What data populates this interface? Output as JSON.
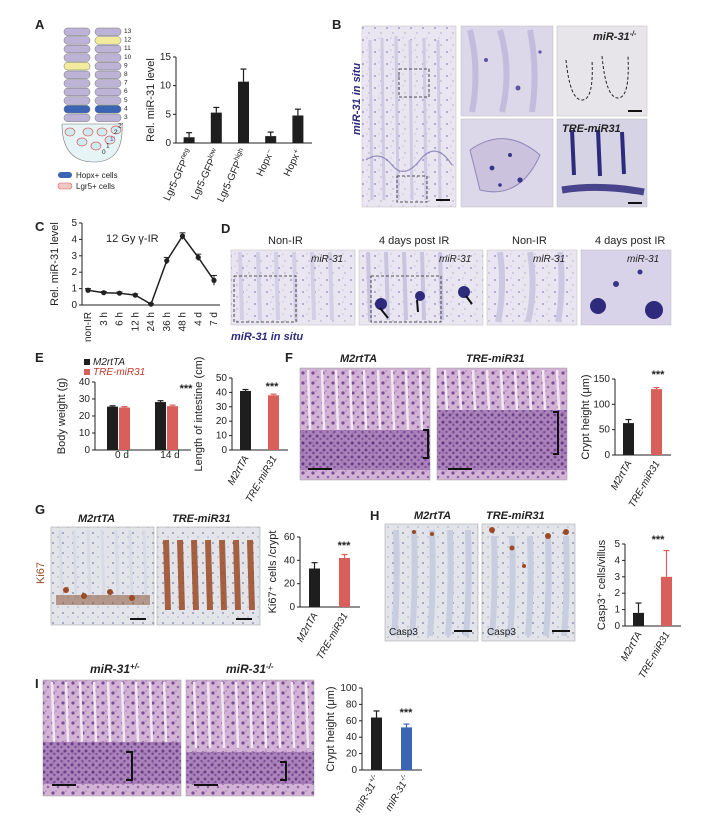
{
  "panel_letters": [
    "A",
    "B",
    "C",
    "D",
    "E",
    "F",
    "G",
    "H",
    "I"
  ],
  "colors": {
    "black_bar": "#1e1e1e",
    "red_bar": "#d9605a",
    "blue_bar": "#3b64b4",
    "he_bg": "#c9a6cf",
    "insitu_bg": "#e7e3ef",
    "ish_stain": "#2e2a7c",
    "ki67": "#9a4a24"
  },
  "panel_a": {
    "crypt_numbers": [
      "13",
      "12",
      "11",
      "10",
      "9",
      "8",
      "7",
      "6",
      "5",
      "4",
      "3",
      "2'",
      "2",
      "1'",
      "1",
      "0"
    ],
    "legend": [
      "Hopx+ cells",
      "Lgr5+ cells"
    ]
  },
  "panel_b": {
    "insitu_label": "miR-31 in situ",
    "knockout_label": "miR-31",
    "knockout_sup": "-/-",
    "transgenic_label": "TRE-miR31"
  },
  "panel_c": {
    "annotation": "12 Gy γ-IR"
  },
  "panel_d": {
    "labels": [
      "Non-IR",
      "4 days post IR",
      "Non-IR",
      "4 days post IR"
    ],
    "probe": "miR-31",
    "insitu_caption": "miR-31 in situ"
  },
  "panel_e": {
    "legend": [
      "M2rtTA",
      "TRE-miR31"
    ],
    "sig": "***",
    "sig2": "***"
  },
  "panel_f": {
    "titles": [
      "M2rtTA",
      "TRE-miR31"
    ],
    "sig": "***"
  },
  "panel_g": {
    "titles": [
      "M2rtTA",
      "TRE-miR31"
    ],
    "side_label": "Ki67",
    "sig": "***"
  },
  "panel_h": {
    "titles": [
      "M2rtTA",
      "TRE-miR31"
    ],
    "stain_label": "Casp3",
    "sig": "***"
  },
  "panel_i": {
    "titles": [
      "miR-31",
      "miR-31"
    ],
    "title_sups": [
      "+/-",
      "-/-"
    ],
    "sig": "***"
  },
  "chart_data": [
    {
      "id": "A",
      "type": "bar",
      "categories": [
        "Lgr5-GFP neg",
        "Lgr5-GFP low",
        "Lgr5-GFP high",
        "Hopx-",
        "Hopx+"
      ],
      "values": [
        1.0,
        5.3,
        10.7,
        1.2,
        4.8
      ],
      "errors": [
        0.8,
        0.9,
        2.2,
        0.7,
        1.1
      ],
      "ylabel": "Rel. miR-31 level",
      "ylim": [
        0,
        15
      ],
      "yticks": [
        0,
        5,
        10,
        15
      ]
    },
    {
      "id": "C",
      "type": "line",
      "categories": [
        "non-IR",
        "3 h",
        "6 h",
        "12 h",
        "24 h",
        "36 h",
        "48 h",
        "4 d",
        "7 d"
      ],
      "values": [
        0.9,
        0.75,
        0.72,
        0.6,
        0.05,
        2.7,
        4.2,
        2.9,
        1.5
      ],
      "errors": [
        0.1,
        0.07,
        0.07,
        0.07,
        0.03,
        0.2,
        0.2,
        0.2,
        0.3
      ],
      "ylabel": "Rel. miR-31 level",
      "ylim": [
        0,
        5
      ],
      "yticks": [
        0,
        1,
        2,
        3,
        4,
        5
      ]
    },
    {
      "id": "E1",
      "type": "bar",
      "categories": [
        "0 d",
        "14 d"
      ],
      "series": [
        {
          "name": "M2rtTA",
          "values": [
            25.5,
            28.2
          ],
          "errors": [
            0.5,
            0.8
          ]
        },
        {
          "name": "TRE-miR31",
          "values": [
            25.0,
            25.8
          ],
          "errors": [
            0.5,
            0.6
          ]
        }
      ],
      "ylabel": "Body weight (g)",
      "ylim": [
        0,
        40
      ],
      "yticks": [
        0,
        10,
        20,
        30,
        40
      ]
    },
    {
      "id": "E2",
      "type": "bar",
      "categories": [
        "M2rtTA",
        "TRE-miR31"
      ],
      "values": [
        41,
        38
      ],
      "errors": [
        1,
        0.8
      ],
      "ylabel": "Length of intestine (cm)",
      "ylim": [
        0,
        50
      ],
      "yticks": [
        0,
        10,
        20,
        30,
        40,
        50
      ]
    },
    {
      "id": "F",
      "type": "bar",
      "categories": [
        "M2rtTA",
        "TRE-miR31"
      ],
      "values": [
        63,
        130
      ],
      "errors": [
        7,
        3
      ],
      "ylabel": "Crypt height (μm)",
      "ylim": [
        0,
        150
      ],
      "yticks": [
        0,
        50,
        100,
        150
      ]
    },
    {
      "id": "G",
      "type": "bar",
      "categories": [
        "M2rtTA",
        "TRE-miR31"
      ],
      "values": [
        33,
        42
      ],
      "errors": [
        5,
        3
      ],
      "ylabel": "Ki67⁺ cells /crypt",
      "ylim": [
        0,
        60
      ],
      "yticks": [
        0,
        20,
        40,
        60
      ]
    },
    {
      "id": "H",
      "type": "bar",
      "categories": [
        "M2rtTA",
        "TRE-miR31"
      ],
      "values": [
        0.8,
        3.0
      ],
      "errors": [
        0.6,
        1.6
      ],
      "ylabel": "Casp3⁺ cells/villus",
      "ylim": [
        0,
        5
      ],
      "yticks": [
        0,
        1,
        2,
        3,
        4,
        5
      ]
    },
    {
      "id": "I",
      "type": "bar",
      "categories": [
        "miR-31+/-",
        "miR-31-/-"
      ],
      "values": [
        64,
        52
      ],
      "errors": [
        8,
        4
      ],
      "ylabel": "Crypt height (μm)",
      "ylim": [
        0,
        100
      ],
      "yticks": [
        0,
        20,
        40,
        60,
        80,
        100
      ]
    }
  ]
}
